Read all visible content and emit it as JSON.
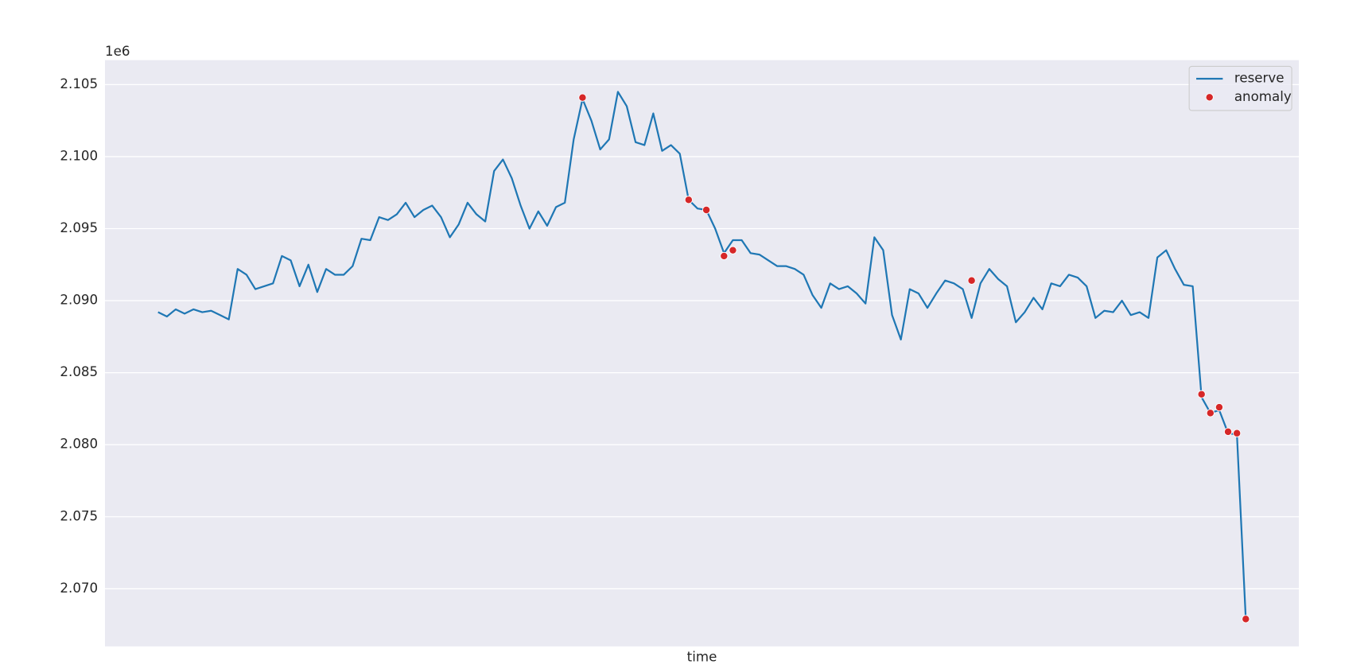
{
  "chart_data": {
    "type": "line",
    "x_label": "time",
    "y_offset_label": "1e6",
    "ylim": [
      2.066,
      2.1067
    ],
    "yticks": [
      {
        "value": 2.07,
        "label": "2.070"
      },
      {
        "value": 2.075,
        "label": "2.075"
      },
      {
        "value": 2.08,
        "label": "2.080"
      },
      {
        "value": 2.085,
        "label": "2.085"
      },
      {
        "value": 2.09,
        "label": "2.090"
      },
      {
        "value": 2.095,
        "label": "2.095"
      },
      {
        "value": 2.1,
        "label": "2.100"
      },
      {
        "value": 2.105,
        "label": "2.105"
      }
    ],
    "grid": true,
    "legend": "upper right",
    "series": [
      {
        "name": "reserve",
        "type": "line",
        "color": "#1f77b4",
        "values": [
          2.0892,
          2.0889,
          2.0894,
          2.0891,
          2.0894,
          2.0892,
          2.0893,
          2.089,
          2.0887,
          2.0922,
          2.0918,
          2.0908,
          2.091,
          2.0912,
          2.0931,
          2.0928,
          2.091,
          2.0925,
          2.0906,
          2.0922,
          2.0918,
          2.0918,
          2.0924,
          2.0943,
          2.0942,
          2.0958,
          2.0956,
          2.096,
          2.0968,
          2.0958,
          2.0963,
          2.0966,
          2.0958,
          2.0944,
          2.0953,
          2.0968,
          2.096,
          2.0955,
          2.099,
          2.0998,
          2.0985,
          2.0966,
          2.095,
          2.0962,
          2.0952,
          2.0965,
          2.0968,
          2.1012,
          2.104,
          2.1025,
          2.1005,
          2.1012,
          2.1045,
          2.1035,
          2.101,
          2.1008,
          2.103,
          2.1004,
          2.1008,
          2.1002,
          2.097,
          2.0964,
          2.0963,
          2.095,
          2.0933,
          2.0942,
          2.0942,
          2.0933,
          2.0932,
          2.0928,
          2.0924,
          2.0924,
          2.0922,
          2.0918,
          2.0904,
          2.0895,
          2.0912,
          2.0908,
          2.091,
          2.0905,
          2.0898,
          2.0944,
          2.0935,
          2.089,
          2.0873,
          2.0908,
          2.0905,
          2.0895,
          2.0905,
          2.0914,
          2.0912,
          2.0908,
          2.0888,
          2.0912,
          2.0922,
          2.0915,
          2.091,
          2.0885,
          2.0892,
          2.0902,
          2.0894,
          2.0912,
          2.091,
          2.0918,
          2.0916,
          2.091,
          2.0888,
          2.0893,
          2.0892,
          2.09,
          2.089,
          2.0892,
          2.0888,
          2.093,
          2.0935,
          2.0922,
          2.0911,
          2.091,
          2.0833,
          2.0822,
          2.0824,
          2.0808,
          2.0807,
          2.0679
        ]
      },
      {
        "name": "anomaly",
        "type": "scatter",
        "color": "#d62728",
        "values": [
          null,
          null,
          null,
          null,
          null,
          null,
          null,
          null,
          null,
          null,
          null,
          null,
          null,
          null,
          null,
          null,
          null,
          null,
          null,
          null,
          null,
          null,
          null,
          null,
          null,
          null,
          null,
          null,
          null,
          null,
          null,
          null,
          null,
          null,
          null,
          null,
          null,
          null,
          null,
          null,
          null,
          null,
          null,
          null,
          null,
          null,
          null,
          null,
          2.1041,
          null,
          null,
          null,
          null,
          null,
          null,
          null,
          null,
          null,
          null,
          null,
          2.097,
          null,
          2.0963,
          null,
          2.0931,
          2.0935,
          null,
          null,
          null,
          null,
          null,
          null,
          null,
          null,
          null,
          null,
          null,
          null,
          null,
          null,
          null,
          null,
          null,
          null,
          null,
          null,
          null,
          null,
          null,
          null,
          null,
          null,
          2.0914,
          null,
          null,
          null,
          null,
          null,
          null,
          null,
          null,
          null,
          null,
          null,
          null,
          null,
          null,
          null,
          null,
          null,
          null,
          null,
          null,
          null,
          null,
          null,
          null,
          null,
          2.0835,
          2.0822,
          2.0826,
          2.0809,
          2.0808,
          2.0679
        ]
      }
    ]
  }
}
